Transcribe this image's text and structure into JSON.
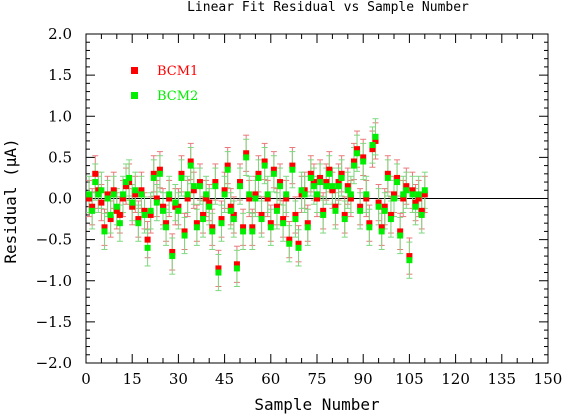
{
  "chart_data": {
    "type": "scatter",
    "title": "Linear Fit Residual vs Sample Number",
    "xlabel": "Sample Number",
    "ylabel": "Residual (μA)",
    "xlim": [
      0,
      150
    ],
    "ylim": [
      -2.0,
      2.0
    ],
    "x_ticks": [
      "0",
      "15",
      "30",
      "45",
      "60",
      "75",
      "90",
      "105",
      "120",
      "135",
      "150"
    ],
    "y_ticks": [
      "2.0",
      "1.5",
      "1.0",
      "0.5",
      "0.0",
      "−0.5",
      "−1.0",
      "−1.5",
      "−2.0"
    ],
    "zero_line": true,
    "error_bar": 0.22,
    "legend_position": "top-left",
    "series": [
      {
        "name": "BCM1",
        "color": "#ff0000",
        "x": [
          1,
          2,
          3,
          4,
          5,
          6,
          7,
          8,
          9,
          10,
          11,
          12,
          13,
          14,
          15,
          16,
          17,
          18,
          19,
          20,
          21,
          22,
          23,
          24,
          25,
          26,
          27,
          28,
          29,
          30,
          31,
          32,
          33,
          34,
          35,
          36,
          37,
          38,
          39,
          40,
          41,
          42,
          43,
          44,
          45,
          46,
          47,
          48,
          49,
          50,
          51,
          52,
          53,
          54,
          55,
          56,
          57,
          58,
          59,
          60,
          61,
          62,
          63,
          64,
          65,
          66,
          67,
          68,
          69,
          70,
          71,
          72,
          73,
          74,
          75,
          76,
          77,
          78,
          79,
          80,
          81,
          82,
          83,
          84,
          85,
          86,
          87,
          88,
          89,
          90,
          91,
          92,
          93,
          94,
          95,
          96,
          97,
          98,
          99,
          100,
          101,
          102,
          103,
          104,
          105,
          106,
          107,
          108,
          109,
          110
        ],
        "y": [
          0.0,
          -0.1,
          0.3,
          0.1,
          -0.05,
          -0.35,
          0.05,
          -0.25,
          0.1,
          -0.15,
          -0.2,
          0.0,
          0.15,
          0.2,
          -0.1,
          0.05,
          -0.25,
          0.1,
          -0.15,
          -0.5,
          -0.2,
          0.3,
          0.0,
          0.35,
          -0.1,
          -0.3,
          0.0,
          -0.65,
          -0.1,
          -0.1,
          0.3,
          -0.4,
          0.0,
          0.45,
          0.1,
          -0.3,
          0.2,
          -0.2,
          0.0,
          -0.05,
          -0.35,
          0.2,
          -0.85,
          -0.25,
          0.1,
          0.4,
          -0.1,
          -0.2,
          -0.8,
          0.2,
          -0.35,
          0.55,
          0.0,
          -0.35,
          0.05,
          0.3,
          -0.2,
          0.45,
          0.0,
          -0.3,
          0.35,
          -0.1,
          0.2,
          -0.25,
          0.0,
          -0.5,
          0.4,
          -0.2,
          -0.55,
          0.05,
          0.1,
          -0.3,
          0.3,
          0.2,
          0.0,
          0.25,
          -0.15,
          0.2,
          0.35,
          0.1,
          -0.1,
          0.2,
          0.3,
          -0.2,
          0.15,
          0.0,
          0.45,
          0.6,
          -0.1,
          0.5,
          0.0,
          -0.3,
          0.6,
          0.7,
          -0.05,
          -0.35,
          -0.1,
          0.3,
          -0.2,
          0.05,
          0.25,
          -0.4,
          0.0,
          0.15,
          -0.7,
          0.1,
          -0.05,
          0.0,
          -0.15,
          0.05
        ]
      },
      {
        "name": "BCM2",
        "color": "#00ee00",
        "x": [
          1,
          2,
          3,
          4,
          5,
          6,
          7,
          8,
          9,
          10,
          11,
          12,
          13,
          14,
          15,
          16,
          17,
          18,
          19,
          20,
          21,
          22,
          23,
          24,
          25,
          26,
          27,
          28,
          29,
          30,
          31,
          32,
          33,
          34,
          35,
          36,
          37,
          38,
          39,
          40,
          41,
          42,
          43,
          44,
          45,
          46,
          47,
          48,
          49,
          50,
          51,
          52,
          53,
          54,
          55,
          56,
          57,
          58,
          59,
          60,
          61,
          62,
          63,
          64,
          65,
          66,
          67,
          68,
          69,
          70,
          71,
          72,
          73,
          74,
          75,
          76,
          77,
          78,
          79,
          80,
          81,
          82,
          83,
          84,
          85,
          86,
          87,
          88,
          89,
          90,
          91,
          92,
          93,
          94,
          95,
          96,
          97,
          98,
          99,
          100,
          101,
          102,
          103,
          104,
          105,
          106,
          107,
          108,
          109,
          110
        ],
        "y": [
          0.05,
          -0.15,
          0.2,
          0.05,
          0.1,
          -0.4,
          0.0,
          -0.2,
          0.05,
          -0.1,
          -0.3,
          0.05,
          0.2,
          0.25,
          -0.05,
          0.1,
          -0.3,
          0.05,
          -0.2,
          -0.6,
          -0.15,
          0.25,
          -0.05,
          0.3,
          -0.15,
          -0.35,
          0.05,
          -0.7,
          -0.05,
          -0.15,
          0.25,
          -0.45,
          0.05,
          0.4,
          0.15,
          -0.35,
          0.15,
          -0.25,
          0.05,
          -0.1,
          -0.4,
          0.15,
          -0.9,
          -0.3,
          0.05,
          0.35,
          -0.15,
          -0.25,
          -0.85,
          0.15,
          -0.4,
          0.5,
          0.05,
          -0.4,
          0.0,
          0.25,
          -0.25,
          0.4,
          0.05,
          -0.35,
          0.3,
          -0.15,
          0.15,
          -0.3,
          0.05,
          -0.55,
          0.35,
          -0.25,
          -0.6,
          0.1,
          0.05,
          -0.35,
          0.25,
          0.15,
          0.05,
          0.2,
          -0.2,
          0.15,
          0.3,
          0.15,
          -0.15,
          0.15,
          0.25,
          -0.25,
          0.1,
          0.05,
          0.4,
          0.55,
          -0.15,
          0.45,
          0.05,
          -0.35,
          0.65,
          0.75,
          -0.1,
          -0.4,
          -0.15,
          0.25,
          -0.25,
          0.0,
          0.2,
          -0.45,
          0.05,
          0.1,
          -0.75,
          0.05,
          -0.1,
          0.05,
          -0.2,
          0.1
        ]
      }
    ]
  }
}
